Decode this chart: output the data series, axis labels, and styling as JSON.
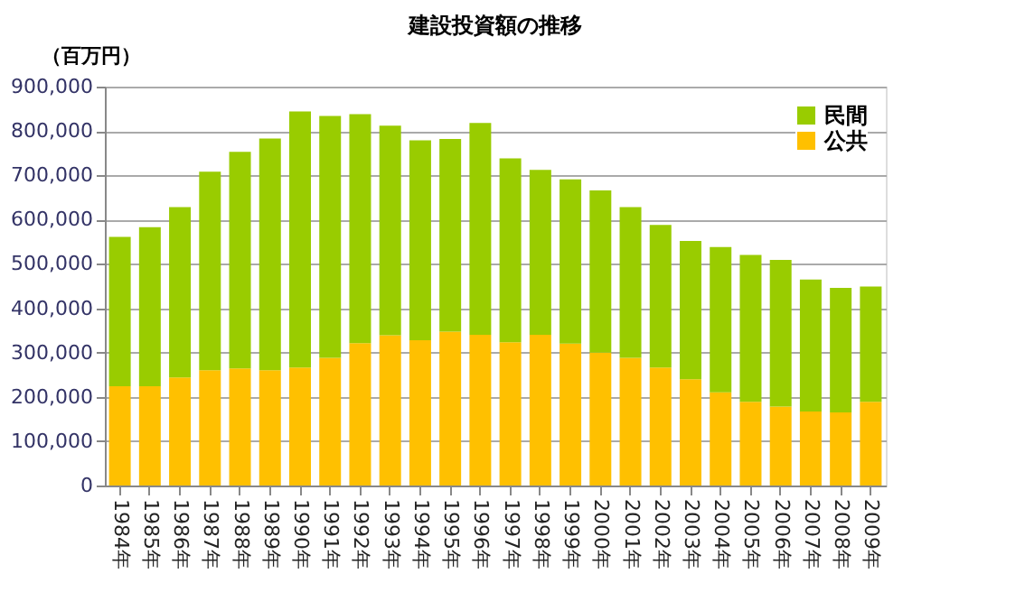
{
  "chart_data": {
    "type": "bar",
    "title": "建設投資額の推移",
    "ylabel": "（百万円）",
    "stacked": true,
    "categories": [
      "1984年",
      "1985年",
      "1986年",
      "1987年",
      "1988年",
      "1989年",
      "1990年",
      "1991年",
      "1992年",
      "1993年",
      "1994年",
      "1995年",
      "1996年",
      "1997年",
      "1998年",
      "1999年",
      "2000年",
      "2001年",
      "2002年",
      "2003年",
      "2004年",
      "2005年",
      "2006年",
      "2007年",
      "2008年",
      "2009年"
    ],
    "series": [
      {
        "name": "公共",
        "color": "#ffc000",
        "values": [
          224000,
          224000,
          244000,
          260000,
          264000,
          260000,
          266000,
          288000,
          321000,
          339000,
          328000,
          347000,
          340000,
          323000,
          340000,
          320000,
          300000,
          288000,
          266000,
          240000,
          210000,
          189000,
          178000,
          167000,
          165000,
          189000
        ]
      },
      {
        "name": "民間",
        "color": "#99cc00",
        "values": [
          337000,
          359000,
          384000,
          448000,
          489000,
          523000,
          578000,
          546000,
          517000,
          473000,
          451000,
          435000,
          478000,
          415000,
          372000,
          371000,
          366000,
          340000,
          322000,
          312000,
          328000,
          331000,
          331000,
          298000,
          281000,
          260000
        ]
      }
    ],
    "ylim": [
      0,
      900000
    ],
    "yticks": [
      0,
      {
        "value": 100000,
        "label": "100,000"
      },
      {
        "value": 200000,
        "label": "200,000"
      },
      {
        "value": 300000,
        "label": "300,000"
      },
      {
        "value": 400000,
        "label": "400,000"
      },
      {
        "value": 500000,
        "label": "500,000"
      },
      {
        "value": 600000,
        "label": "600,000"
      },
      {
        "value": 700000,
        "label": "700,000"
      },
      {
        "value": 800000,
        "label": "800,000"
      },
      {
        "value": 900000,
        "label": "900,000"
      }
    ],
    "grid": "y",
    "legend": "top right"
  }
}
